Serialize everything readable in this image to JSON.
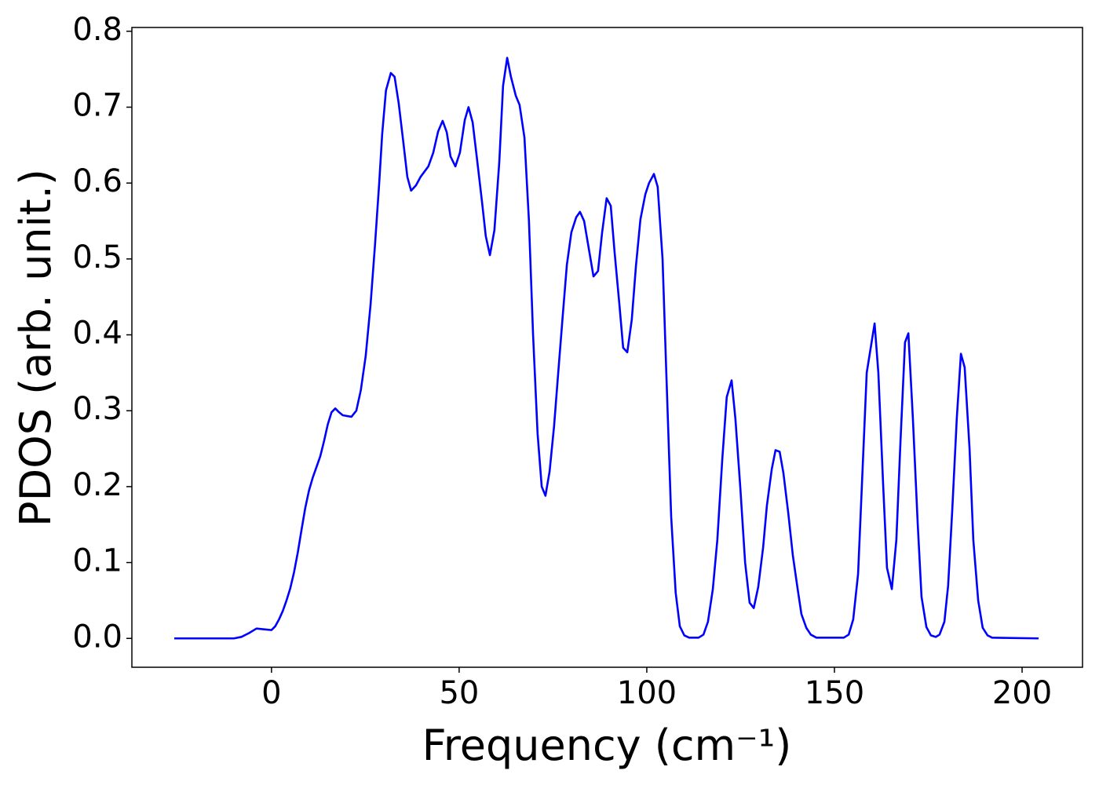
{
  "chart_data": {
    "type": "line",
    "xlabel": "Frequency (cm⁻¹)",
    "ylabel": "PDOS (arb. unit.)",
    "xlim": [
      -37.2,
      216.1
    ],
    "ylim": [
      -0.038,
      0.805
    ],
    "xticks": [
      0,
      50,
      100,
      150,
      200
    ],
    "yticks": [
      {
        "value": 0,
        "label": "0.0"
      },
      0.1,
      0.2,
      0.3,
      0.4,
      0.5,
      0.6,
      0.7,
      0.8
    ],
    "x": [
      -25.9,
      -10,
      -8,
      -6,
      -4,
      -2,
      0,
      1,
      2,
      3,
      4,
      5,
      6,
      7,
      8,
      9,
      10,
      11,
      12,
      13,
      14,
      15,
      16,
      17,
      18,
      19,
      21.3,
      22.6,
      23.8,
      25.1,
      26.4,
      27.6,
      28.7,
      29.5,
      30.5,
      31.8,
      32.8,
      33.9,
      35.1,
      36.2,
      37.2,
      38.5,
      39.7,
      41.8,
      43.1,
      44.4,
      45.6,
      46.7,
      47.7,
      49,
      50.2,
      51.5,
      52.5,
      53.6,
      54.8,
      56.1,
      57.1,
      58.2,
      59.4,
      60.7,
      61.7,
      62.8,
      63.8,
      65.1,
      66.1,
      67.4,
      68.6,
      69.7,
      70.9,
      72,
      73,
      74.1,
      75.3,
      76.4,
      77.6,
      78.7,
      79.9,
      81.2,
      82.2,
      83.3,
      84.5,
      85.8,
      87,
      88.1,
      89.3,
      90.4,
      91.4,
      92.7,
      93.7,
      94.8,
      96,
      97.1,
      98.3,
      99.6,
      100.6,
      101.9,
      102.9,
      104.2,
      105.2,
      106.5,
      107.7,
      108.8,
      110,
      111.3,
      113.8,
      115.1,
      116.3,
      117.6,
      118.8,
      120.1,
      121.3,
      122.6,
      123.6,
      124.9,
      126.2,
      127.4,
      128.5,
      129.7,
      131,
      132,
      133.3,
      134.3,
      135.4,
      136.4,
      137.7,
      138.9,
      140.2,
      141.2,
      142.5,
      143.7,
      145.2,
      152.5,
      153.8,
      155,
      156.3,
      157.3,
      158.6,
      160.7,
      161.7,
      163,
      164,
      165.3,
      166.5,
      167.6,
      168.8,
      169.7,
      170.9,
      172.2,
      173.2,
      174.5,
      175.7,
      177,
      178,
      179.3,
      180.3,
      181.4,
      182.6,
      183.7,
      184.7,
      186,
      187,
      188.3,
      189.5,
      190.8,
      192,
      204.4
    ],
    "series": [
      {
        "color": "#0000ff",
        "values": [
          0,
          0,
          0.002,
          0.007,
          0.013,
          0.012,
          0.011,
          0.016,
          0.025,
          0.036,
          0.05,
          0.066,
          0.087,
          0.113,
          0.143,
          0.172,
          0.195,
          0.212,
          0.226,
          0.24,
          0.26,
          0.282,
          0.298,
          0.303,
          0.298,
          0.294,
          0.292,
          0.3,
          0.327,
          0.372,
          0.44,
          0.52,
          0.6,
          0.665,
          0.722,
          0.745,
          0.74,
          0.705,
          0.655,
          0.608,
          0.59,
          0.597,
          0.608,
          0.622,
          0.64,
          0.668,
          0.682,
          0.667,
          0.635,
          0.622,
          0.64,
          0.683,
          0.7,
          0.68,
          0.63,
          0.575,
          0.53,
          0.505,
          0.538,
          0.628,
          0.728,
          0.765,
          0.74,
          0.715,
          0.703,
          0.66,
          0.55,
          0.4,
          0.27,
          0.2,
          0.188,
          0.22,
          0.28,
          0.35,
          0.425,
          0.492,
          0.535,
          0.555,
          0.562,
          0.55,
          0.515,
          0.477,
          0.484,
          0.535,
          0.58,
          0.57,
          0.51,
          0.44,
          0.383,
          0.377,
          0.42,
          0.49,
          0.552,
          0.585,
          0.6,
          0.612,
          0.595,
          0.5,
          0.35,
          0.16,
          0.06,
          0.016,
          0.004,
          0.001,
          0.001,
          0.005,
          0.022,
          0.065,
          0.13,
          0.235,
          0.318,
          0.34,
          0.29,
          0.2,
          0.1,
          0.047,
          0.04,
          0.068,
          0.12,
          0.175,
          0.223,
          0.248,
          0.246,
          0.218,
          0.165,
          0.11,
          0.065,
          0.032,
          0.014,
          0.005,
          0.001,
          0.001,
          0.005,
          0.025,
          0.085,
          0.2,
          0.35,
          0.415,
          0.35,
          0.2,
          0.093,
          0.065,
          0.13,
          0.26,
          0.39,
          0.402,
          0.29,
          0.15,
          0.055,
          0.015,
          0.004,
          0.002,
          0.005,
          0.022,
          0.07,
          0.17,
          0.29,
          0.375,
          0.357,
          0.25,
          0.13,
          0.05,
          0.014,
          0.004,
          0.001,
          0
        ]
      }
    ]
  }
}
